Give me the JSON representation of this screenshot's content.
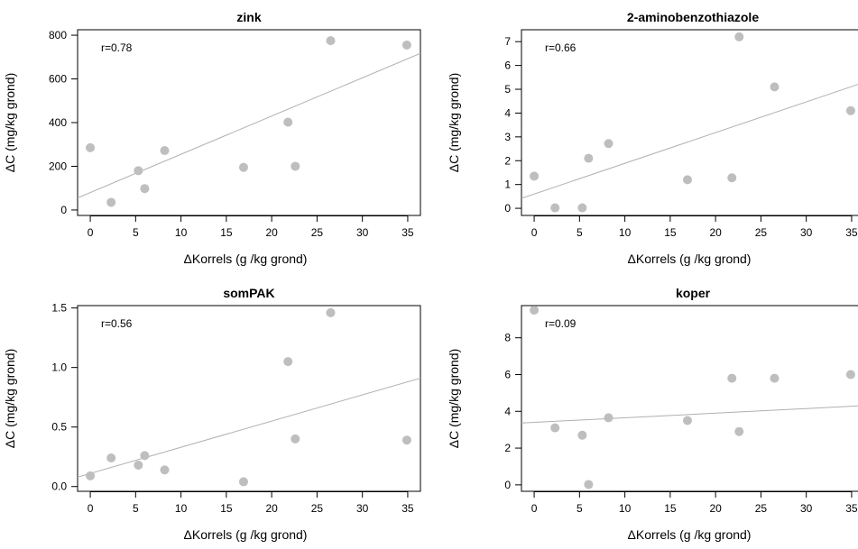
{
  "colors": {
    "point": "#bebebe",
    "fit_line": "#b0b0b0",
    "axis": "#000000",
    "background": "#ffffff"
  },
  "chart_data": [
    {
      "type": "scatter",
      "title": "zink",
      "xlabel": "ΔKorrels (g /kg grond)",
      "ylabel": "ΔC  (mg/kg grond)",
      "annotation": "r=0.78",
      "xlim": [
        -1.4,
        36.4
      ],
      "ylim": [
        -25,
        825
      ],
      "xticks": [
        0,
        5,
        10,
        15,
        20,
        25,
        30,
        35
      ],
      "yticks": [
        0,
        200,
        400,
        600,
        800
      ],
      "x": [
        0,
        2.3,
        5.3,
        6,
        8.2,
        16.9,
        21.8,
        22.6,
        26.5,
        34.9
      ],
      "y": [
        285,
        35,
        180,
        98,
        272,
        195,
        402,
        200,
        775,
        755
      ],
      "fit": {
        "intercept": 80,
        "slope": 17.5
      }
    },
    {
      "type": "scatter",
      "title": "2-aminobenzothiazole",
      "xlabel": "ΔKorrels (g /kg grond)",
      "ylabel": "ΔC  (mg/kg grond)",
      "annotation": "r=0.66",
      "xlim": [
        -1.4,
        36.4
      ],
      "ylim": [
        -0.3,
        7.5
      ],
      "xticks": [
        0,
        5,
        10,
        15,
        20,
        25,
        30,
        35
      ],
      "yticks": [
        0,
        1,
        2,
        3,
        4,
        5,
        6,
        7
      ],
      "x": [
        0,
        2.3,
        5.3,
        6,
        8.2,
        16.9,
        21.8,
        22.6,
        26.5,
        34.9
      ],
      "y": [
        1.35,
        0.02,
        0.02,
        2.1,
        2.72,
        1.2,
        1.28,
        7.2,
        5.1,
        4.1
      ],
      "fit": {
        "intercept": 0.6,
        "slope": 0.129
      }
    },
    {
      "type": "scatter",
      "title": "somPAK",
      "xlabel": "ΔKorrels (g /kg grond)",
      "ylabel": "ΔC  (mg/kg grond)",
      "annotation": "r=0.56",
      "xlim": [
        -1.4,
        36.4
      ],
      "ylim": [
        -0.04,
        1.52
      ],
      "xticks": [
        0,
        5,
        10,
        15,
        20,
        25,
        30,
        35
      ],
      "yticks": [
        0.0,
        0.5,
        1.0,
        1.5
      ],
      "ytick_labels": [
        "0.0",
        "0.5",
        "1.0",
        "1.5"
      ],
      "x": [
        0,
        2.3,
        5.3,
        6,
        8.2,
        16.9,
        21.8,
        22.6,
        26.5,
        34.9
      ],
      "y": [
        0.09,
        0.24,
        0.18,
        0.26,
        0.14,
        0.04,
        1.05,
        0.4,
        1.46,
        0.39
      ],
      "fit": {
        "intercept": 0.11,
        "slope": 0.022
      }
    },
    {
      "type": "scatter",
      "title": "koper",
      "xlabel": "ΔKorrels (g /kg grond)",
      "ylabel": "ΔC  (mg/kg grond)",
      "annotation": "r=0.09",
      "xlim": [
        -1.4,
        36.4
      ],
      "ylim": [
        -0.35,
        9.75
      ],
      "xticks": [
        0,
        5,
        10,
        15,
        20,
        25,
        30,
        35
      ],
      "yticks": [
        0,
        2,
        4,
        6,
        8
      ],
      "x": [
        0,
        2.3,
        5.3,
        6,
        8.2,
        16.9,
        21.8,
        22.6,
        26.5,
        34.9
      ],
      "y": [
        9.5,
        3.1,
        2.7,
        0.02,
        3.65,
        3.5,
        5.8,
        2.9,
        5.8,
        6.0
      ],
      "fit": {
        "intercept": 3.4,
        "slope": 0.025
      }
    }
  ]
}
